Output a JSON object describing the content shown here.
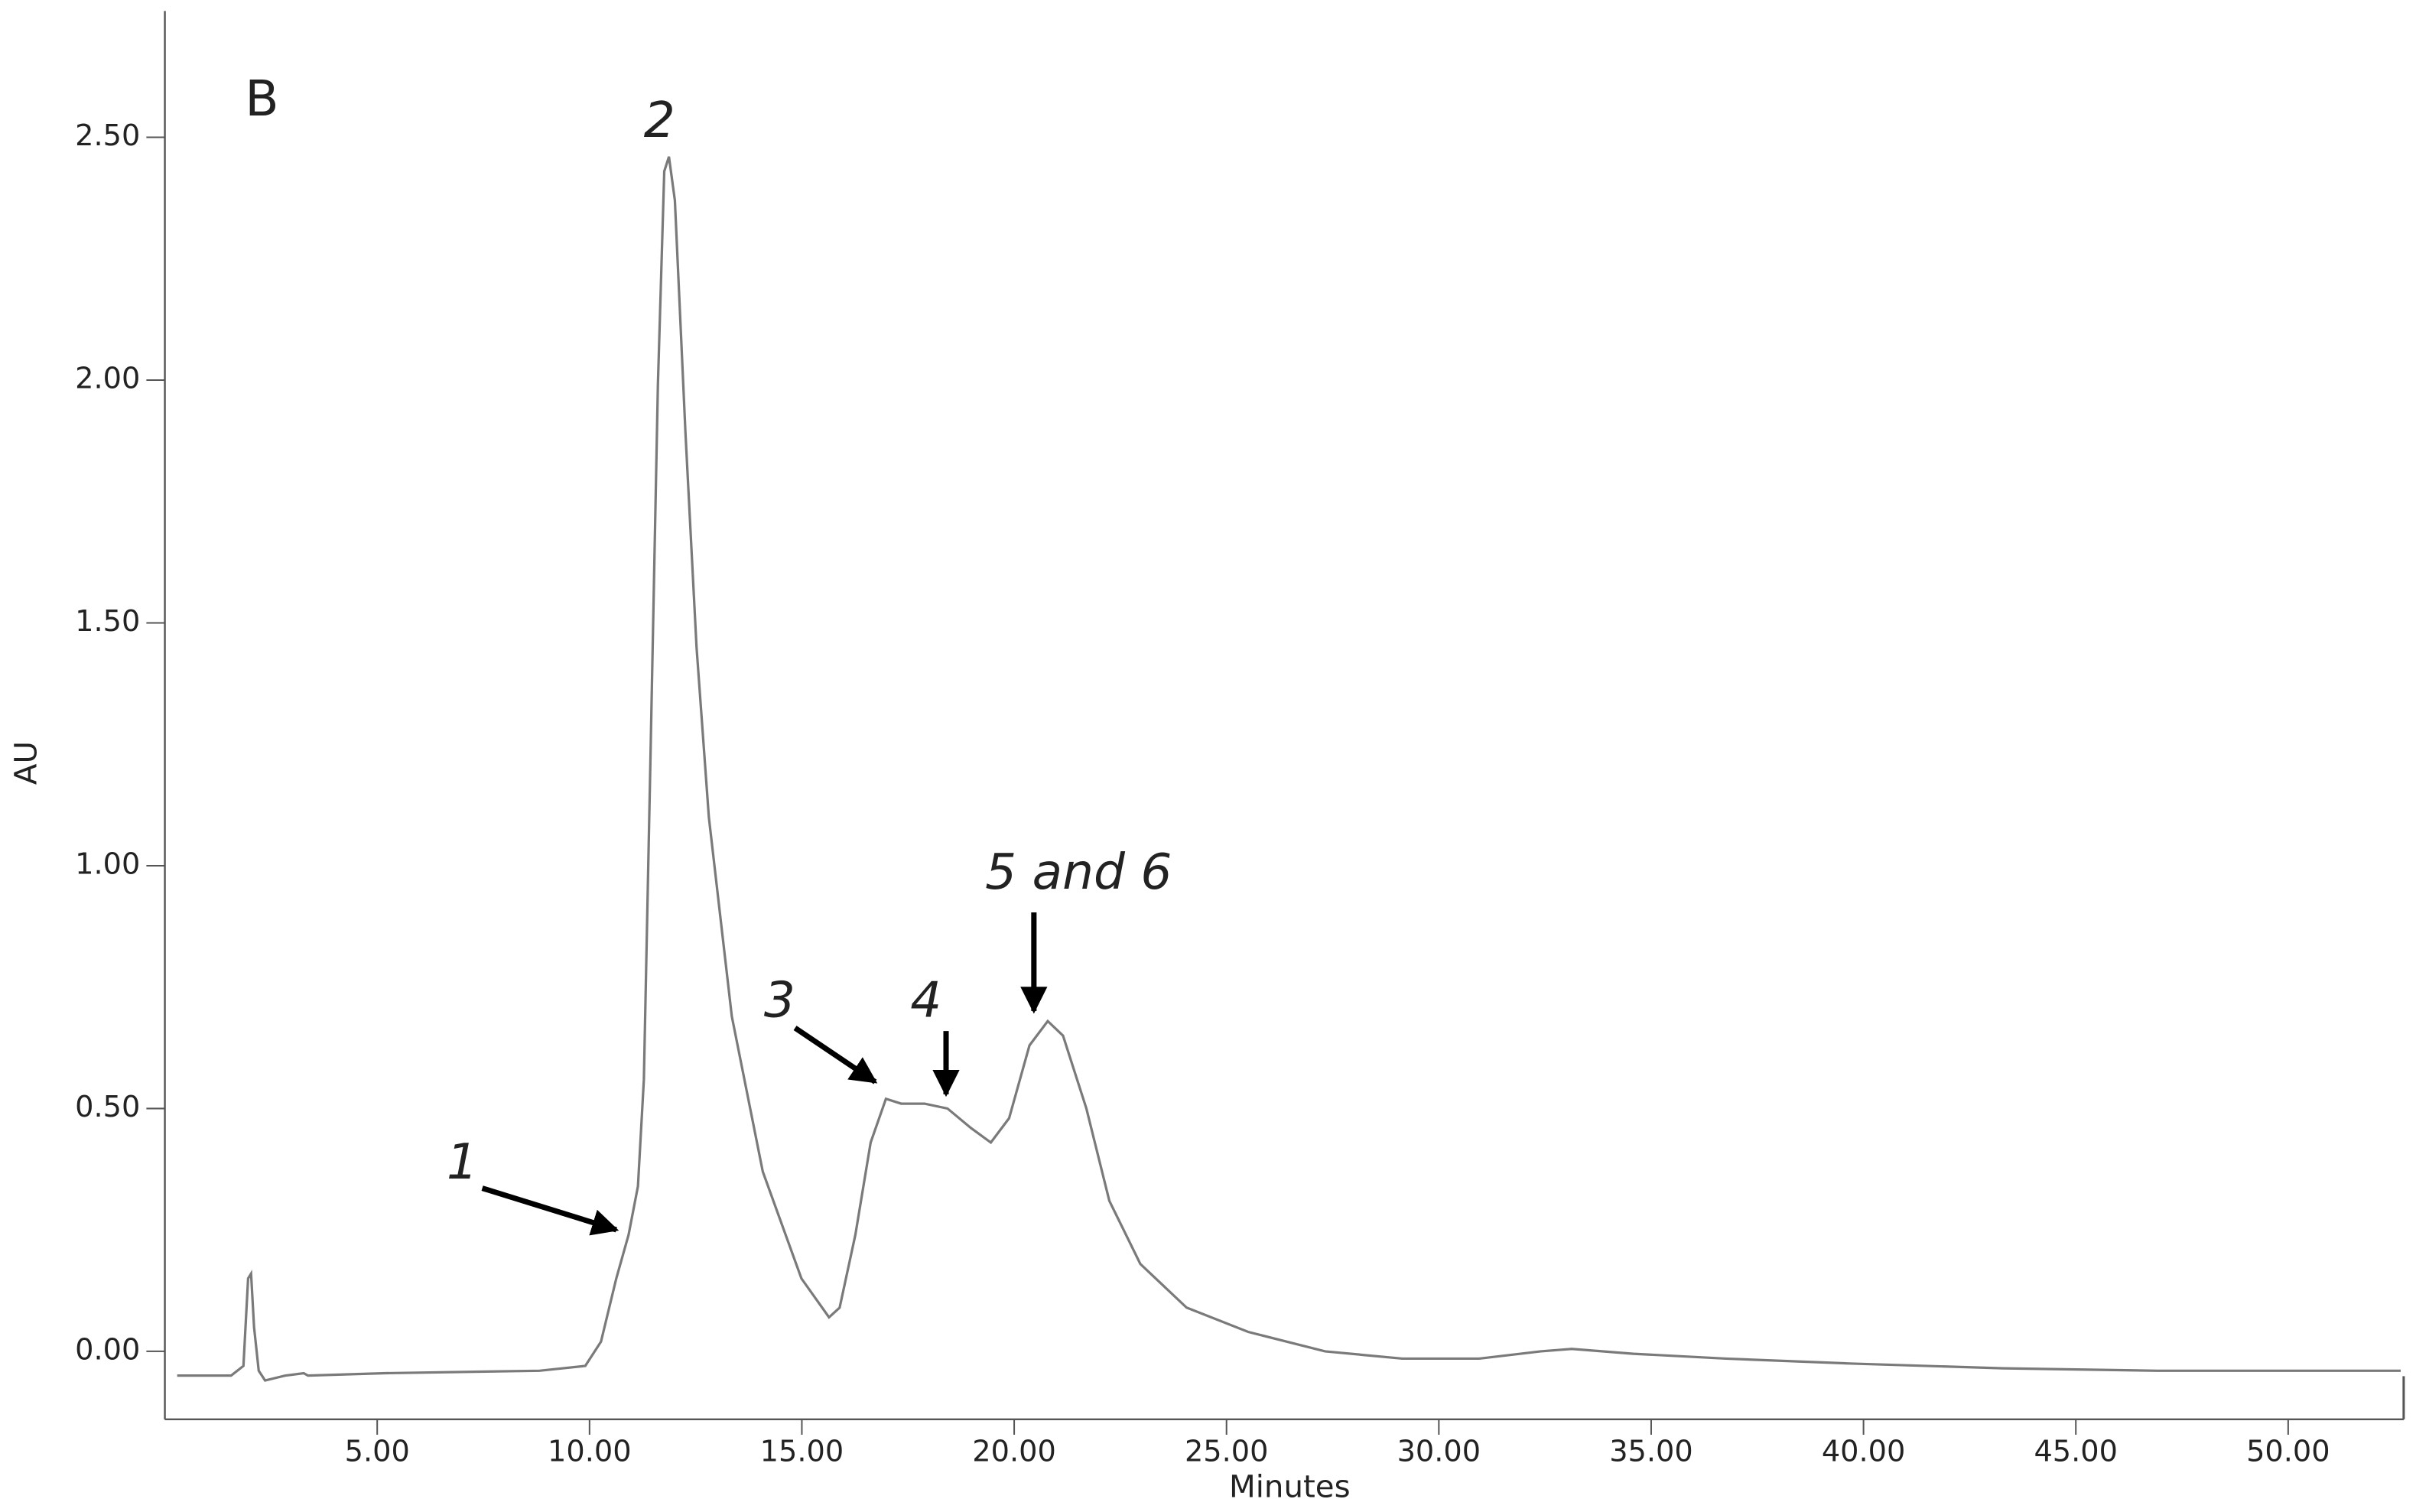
{
  "chart_data": {
    "type": "line",
    "panel_label": "B",
    "x_label": "Minutes",
    "y_label": "AU",
    "annotations": [
      "1",
      "2",
      "3",
      "4",
      "5 and 6"
    ],
    "xlim": [
      0,
      52.72
    ],
    "ylim": [
      -0.14,
      2.76
    ],
    "xticks": [
      {
        "value": 5,
        "label": "5.00"
      },
      {
        "value": 10,
        "label": "10.00"
      },
      {
        "value": 15,
        "label": "15.00"
      },
      {
        "value": 20,
        "label": "20.00"
      },
      {
        "value": 25,
        "label": "25.00"
      },
      {
        "value": 30,
        "label": "30.00"
      },
      {
        "value": 35,
        "label": "35.00"
      },
      {
        "value": 40,
        "label": "40.00"
      },
      {
        "value": 45,
        "label": "45.00"
      },
      {
        "value": 50,
        "label": "50.00"
      }
    ],
    "yticks": [
      {
        "value": 0,
        "label": "0.00"
      },
      {
        "value": 0.5,
        "label": "0.50"
      },
      {
        "value": 1,
        "label": "1.00"
      },
      {
        "value": 1.5,
        "label": "1.50"
      },
      {
        "value": 2,
        "label": "2.00"
      },
      {
        "value": 2.5,
        "label": "2.50"
      }
    ],
    "color": "#7a7a7a",
    "x": [
      0.29,
      1.56,
      1.85,
      1.96,
      2.03,
      2.1,
      2.21,
      2.36,
      2.83,
      3.27,
      3.37,
      5.19,
      8.82,
      9.9,
      10.27,
      10.63,
      10.92,
      11.14,
      11.28,
      11.43,
      11.61,
      11.76,
      11.87,
      12.01,
      12.26,
      12.52,
      12.81,
      13.35,
      14.08,
      14.99,
      15.64,
      15.89,
      16.26,
      16.62,
      16.98,
      17.34,
      17.89,
      18.43,
      18.98,
      19.45,
      19.88,
      20.36,
      20.79,
      21.15,
      21.7,
      22.24,
      22.97,
      24.06,
      25.51,
      27.32,
      29.14,
      30.95,
      32.4,
      33.13,
      34.58,
      36.76,
      39.66,
      43.29,
      46.92,
      52.65
    ],
    "values": [
      -0.05,
      -0.05,
      -0.03,
      0.15,
      0.16,
      0.05,
      -0.04,
      -0.06,
      -0.05,
      -0.045,
      -0.05,
      -0.045,
      -0.04,
      -0.03,
      0.02,
      0.15,
      0.24,
      0.34,
      0.56,
      1.2,
      1.99,
      2.43,
      2.46,
      2.37,
      1.89,
      1.45,
      1.1,
      0.69,
      0.37,
      0.15,
      0.07,
      0.09,
      0.24,
      0.43,
      0.52,
      0.51,
      0.51,
      0.5,
      0.46,
      0.43,
      0.48,
      0.63,
      0.68,
      0.65,
      0.5,
      0.31,
      0.18,
      0.09,
      0.04,
      0.0,
      -0.015,
      -0.015,
      0.0,
      0.005,
      -0.005,
      -0.015,
      -0.025,
      -0.035,
      -0.04,
      -0.04
    ]
  }
}
